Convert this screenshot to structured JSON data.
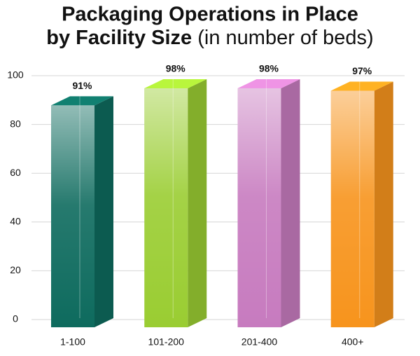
{
  "chart_data": {
    "type": "bar3d",
    "title": [
      "Packaging Operations in Place",
      "by Facility Size"
    ],
    "subtitle": "(in number of beds)",
    "categories": [
      "1-100",
      "101-200",
      "201-400",
      "400+"
    ],
    "values": [
      91,
      98,
      98,
      97
    ],
    "value_labels": [
      "91%",
      "98%",
      "98%",
      "97%"
    ],
    "colors": [
      "#0e6b5e",
      "#9acd32",
      "#c77bbf",
      "#f7941d"
    ],
    "ylim": [
      0,
      100
    ],
    "yticks": [
      0,
      20,
      40,
      60,
      80,
      100
    ],
    "grid": true
  }
}
